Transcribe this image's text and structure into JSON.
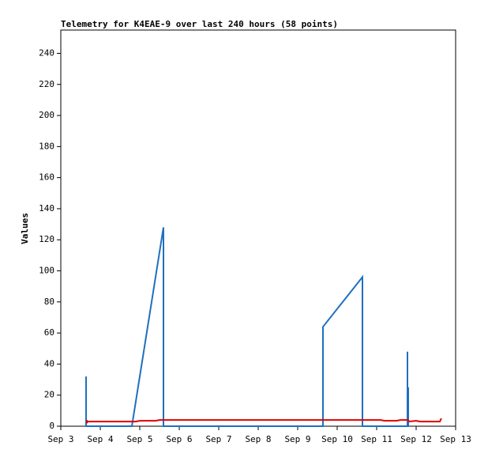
{
  "chart_data": {
    "type": "line",
    "title": "Telemetry for K4EAE-9 over last 240 hours (58 points)",
    "y_label": "Values",
    "xlim": [
      3,
      13
    ],
    "xticks": [
      {
        "value": 3,
        "label": "Sep 3"
      },
      {
        "value": 4,
        "label": "Sep 4"
      },
      {
        "value": 5,
        "label": "Sep 5"
      },
      {
        "value": 6,
        "label": "Sep 6"
      },
      {
        "value": 7,
        "label": "Sep 7"
      },
      {
        "value": 8,
        "label": "Sep 8"
      },
      {
        "value": 9,
        "label": "Sep 9"
      },
      {
        "value": 10,
        "label": "Sep 10"
      },
      {
        "value": 11,
        "label": "Sep 11"
      },
      {
        "value": 12,
        "label": "Sep 12"
      },
      {
        "value": 13,
        "label": "Sep 13"
      }
    ],
    "ylim": [
      0,
      255
    ],
    "yticks": [
      0,
      20,
      40,
      60,
      80,
      100,
      120,
      140,
      160,
      180,
      200,
      220,
      240
    ],
    "series": [
      {
        "color": "#1f6fbf",
        "x": [
          3.64,
          3.64,
          4.8,
          5.6,
          5.6,
          9.64,
          9.64,
          9.64,
          10.64,
          10.64,
          11.78,
          11.78,
          11.78,
          11.8,
          11.8,
          11.82
        ],
        "values": [
          32,
          0,
          0,
          128,
          0,
          0,
          32,
          64,
          96,
          0,
          0,
          48,
          0,
          25,
          0,
          0
        ]
      },
      {
        "color": "#e00000",
        "x": [
          3.66,
          3.66,
          3.68,
          4.9,
          5.0,
          5.4,
          5.5,
          11.1,
          11.2,
          11.5,
          11.6,
          11.8,
          11.82,
          12.0,
          12.1,
          12.6,
          12.62,
          12.64
        ],
        "values": [
          4,
          2,
          3,
          3,
          3.5,
          3.5,
          4,
          4,
          3.5,
          3.5,
          4,
          4,
          3,
          3.5,
          3,
          3,
          4,
          5
        ]
      }
    ]
  }
}
